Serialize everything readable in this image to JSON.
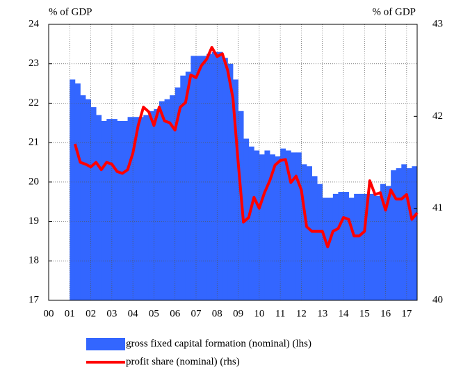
{
  "chart_data": {
    "type": "area-line",
    "y_label": "% of GDP",
    "y2_label": "% of GDP",
    "xlim": [
      2000,
      2017.5
    ],
    "xticks": [
      {
        "value": 2000,
        "label": "00"
      },
      {
        "value": 2001,
        "label": "01"
      },
      {
        "value": 2002,
        "label": "02"
      },
      {
        "value": 2003,
        "label": "03"
      },
      {
        "value": 2004,
        "label": "04"
      },
      {
        "value": 2005,
        "label": "05"
      },
      {
        "value": 2006,
        "label": "06"
      },
      {
        "value": 2007,
        "label": "07"
      },
      {
        "value": 2008,
        "label": "08"
      },
      {
        "value": 2009,
        "label": "09"
      },
      {
        "value": 2010,
        "label": "10"
      },
      {
        "value": 2011,
        "label": "11"
      },
      {
        "value": 2012,
        "label": "12"
      },
      {
        "value": 2013,
        "label": "13"
      },
      {
        "value": 2014,
        "label": "14"
      },
      {
        "value": 2015,
        "label": "15"
      },
      {
        "value": 2016,
        "label": "16"
      },
      {
        "value": 2017,
        "label": "17"
      }
    ],
    "ylim": [
      17,
      24
    ],
    "yticks": [
      17,
      18,
      19,
      20,
      21,
      22,
      23,
      24
    ],
    "y2lim": [
      40,
      43
    ],
    "y2ticks": [
      40,
      41,
      42,
      43
    ],
    "grid": true,
    "series": [
      {
        "name": "gross fixed capital formation (nominal) (lhs)",
        "color": "#3366ff",
        "kind": "area",
        "step": 0.25,
        "x": [
          2001,
          2001.25,
          2001.5,
          2001.75,
          2002,
          2002.25,
          2002.5,
          2002.75,
          2003,
          2003.25,
          2003.5,
          2003.75,
          2004,
          2004.25,
          2004.5,
          2004.75,
          2005,
          2005.25,
          2005.5,
          2005.75,
          2006,
          2006.25,
          2006.5,
          2006.75,
          2007,
          2007.25,
          2007.5,
          2007.75,
          2008,
          2008.25,
          2008.5,
          2008.75,
          2009,
          2009.25,
          2009.5,
          2009.75,
          2010,
          2010.25,
          2010.5,
          2010.75,
          2011,
          2011.25,
          2011.5,
          2011.75,
          2012,
          2012.25,
          2012.5,
          2012.75,
          2013,
          2013.25,
          2013.5,
          2013.75,
          2014,
          2014.25,
          2014.5,
          2014.75,
          2015,
          2015.25,
          2015.5,
          2015.75,
          2016,
          2016.25,
          2016.5,
          2016.75,
          2017,
          2017.25
        ],
        "values": [
          22.6,
          22.5,
          22.2,
          22.1,
          21.9,
          21.7,
          21.55,
          21.6,
          21.6,
          21.55,
          21.55,
          21.65,
          21.65,
          21.65,
          21.7,
          21.8,
          21.85,
          22.05,
          22.1,
          22.2,
          22.4,
          22.7,
          22.8,
          23.2,
          23.2,
          23.2,
          23.25,
          23.3,
          23.3,
          23.15,
          23.0,
          22.6,
          21.8,
          21.1,
          20.9,
          20.8,
          20.7,
          20.8,
          20.7,
          20.65,
          20.85,
          20.8,
          20.75,
          20.75,
          20.45,
          20.4,
          20.15,
          19.95,
          19.6,
          19.6,
          19.7,
          19.75,
          19.75,
          19.6,
          19.7,
          19.7,
          19.7,
          19.7,
          19.65,
          19.95,
          19.9,
          20.3,
          20.35,
          20.45,
          20.35,
          20.4
        ]
      },
      {
        "name": "profit share (nominal) (rhs)",
        "color": "#ff0000",
        "kind": "line",
        "axis": "y2",
        "x": [
          2001.25,
          2001.5,
          2001.75,
          2002,
          2002.25,
          2002.5,
          2002.75,
          2003,
          2003.25,
          2003.5,
          2003.75,
          2004,
          2004.25,
          2004.5,
          2004.75,
          2005,
          2005.25,
          2005.5,
          2005.75,
          2006,
          2006.25,
          2006.5,
          2006.75,
          2007,
          2007.25,
          2007.5,
          2007.75,
          2008,
          2008.25,
          2008.5,
          2008.75,
          2009,
          2009.25,
          2009.5,
          2009.75,
          2010,
          2010.25,
          2010.5,
          2010.75,
          2011,
          2011.25,
          2011.5,
          2011.75,
          2012,
          2012.25,
          2012.5,
          2012.75,
          2013,
          2013.25,
          2013.5,
          2013.75,
          2014,
          2014.25,
          2014.5,
          2014.75,
          2015,
          2015.25,
          2015.5,
          2015.75,
          2016,
          2016.25,
          2016.5,
          2016.75,
          2017,
          2017.25,
          2017.5
        ],
        "values": [
          41.7,
          41.5,
          41.48,
          41.45,
          41.5,
          41.42,
          41.5,
          41.48,
          41.4,
          41.38,
          41.42,
          41.6,
          41.9,
          42.1,
          42.05,
          41.9,
          42.1,
          41.95,
          41.93,
          41.85,
          42.1,
          42.15,
          42.45,
          42.42,
          42.55,
          42.62,
          42.75,
          42.65,
          42.68,
          42.5,
          42.2,
          41.5,
          40.85,
          40.9,
          41.12,
          41.0,
          41.17,
          41.3,
          41.47,
          41.52,
          41.53,
          41.28,
          41.35,
          41.2,
          40.8,
          40.75,
          40.75,
          40.75,
          40.58,
          40.75,
          40.78,
          40.9,
          40.88,
          40.7,
          40.7,
          40.75,
          41.3,
          41.15,
          41.17,
          40.98,
          41.2,
          41.1,
          41.1,
          41.15,
          40.88,
          40.95
        ]
      }
    ]
  }
}
